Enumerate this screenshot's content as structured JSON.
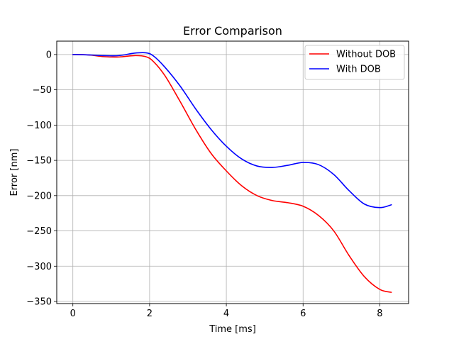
{
  "chart_data": {
    "type": "line",
    "title": "Error Comparison",
    "xlabel": "Time [ms]",
    "ylabel": "Error [nm]",
    "xlim": [
      -0.42,
      8.75
    ],
    "ylim": [
      -353,
      19
    ],
    "x_ticks": [
      0,
      2,
      4,
      6,
      8
    ],
    "x_tick_labels": [
      "0",
      "2",
      "4",
      "6",
      "8"
    ],
    "y_ticks": [
      0,
      -50,
      -100,
      -150,
      -200,
      -250,
      -300,
      -350
    ],
    "y_tick_labels": [
      "0",
      "−50",
      "−100",
      "−150",
      "−200",
      "−250",
      "−300",
      "−350"
    ],
    "grid": true,
    "legend_position": "top-right",
    "series": [
      {
        "name": "Without DOB",
        "color": "#ff0000",
        "x": [
          0,
          0.4,
          0.8,
          1.2,
          1.6,
          1.9,
          2.1,
          2.4,
          2.8,
          3.2,
          3.6,
          4.0,
          4.4,
          4.8,
          5.2,
          5.6,
          6.0,
          6.4,
          6.8,
          7.2,
          7.6,
          8.0,
          8.3
        ],
        "y": [
          0,
          -0.5,
          -3,
          -3.5,
          -1.5,
          -3,
          -10,
          -30,
          -67,
          -106,
          -140,
          -165,
          -186,
          -200,
          -207,
          -210,
          -215,
          -228,
          -250,
          -285,
          -315,
          -333,
          -337
        ]
      },
      {
        "name": "With DOB",
        "color": "#0000ff",
        "x": [
          0,
          0.4,
          0.8,
          1.2,
          1.6,
          1.9,
          2.1,
          2.4,
          2.8,
          3.2,
          3.6,
          4.0,
          4.4,
          4.8,
          5.2,
          5.6,
          6.0,
          6.4,
          6.8,
          7.2,
          7.6,
          8.0,
          8.3
        ],
        "y": [
          0,
          -0.5,
          -1.5,
          -1.5,
          2,
          2.5,
          -2,
          -18,
          -45,
          -77,
          -106,
          -130,
          -148,
          -158,
          -160,
          -157,
          -153,
          -156,
          -170,
          -193,
          -212,
          -217,
          -213
        ]
      }
    ]
  }
}
